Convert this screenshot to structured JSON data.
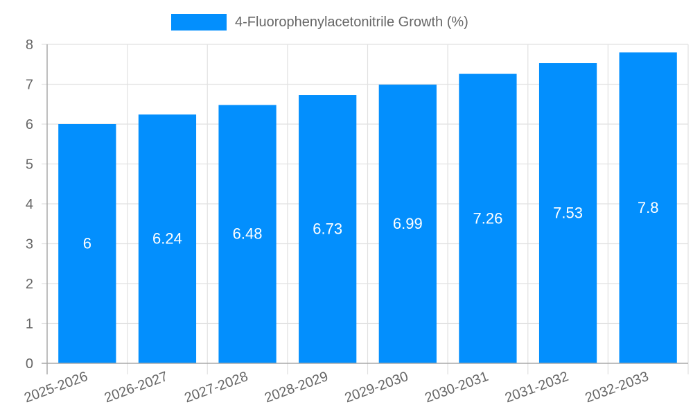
{
  "legend": {
    "label": "4-Fluorophenylacetonitrile Growth (%)",
    "color": "#038ffd"
  },
  "chart_data": {
    "type": "bar",
    "title": "",
    "xlabel": "",
    "ylabel": "",
    "categories": [
      "2025-2026",
      "2026-2027",
      "2027-2028",
      "2028-2029",
      "2029-2030",
      "2030-2031",
      "2031-2032",
      "2032-2033"
    ],
    "series": [
      {
        "name": "4-Fluorophenylacetonitrile Growth (%)",
        "values": [
          6,
          6.24,
          6.48,
          6.73,
          6.99,
          7.26,
          7.53,
          7.8
        ],
        "color": "#038ffd"
      }
    ],
    "ylim": [
      0,
      8
    ],
    "yticks": [
      0,
      1,
      2,
      3,
      4,
      5,
      6,
      7,
      8
    ],
    "grid": true,
    "legend_position": "top",
    "data_labels": true,
    "x_tick_rotation": -20
  },
  "colors": {
    "bar": "#038ffd",
    "grid": "#e1e1e1",
    "axis": "#a8a8a8",
    "tick_text": "#666666",
    "data_label": "#ffffff"
  }
}
